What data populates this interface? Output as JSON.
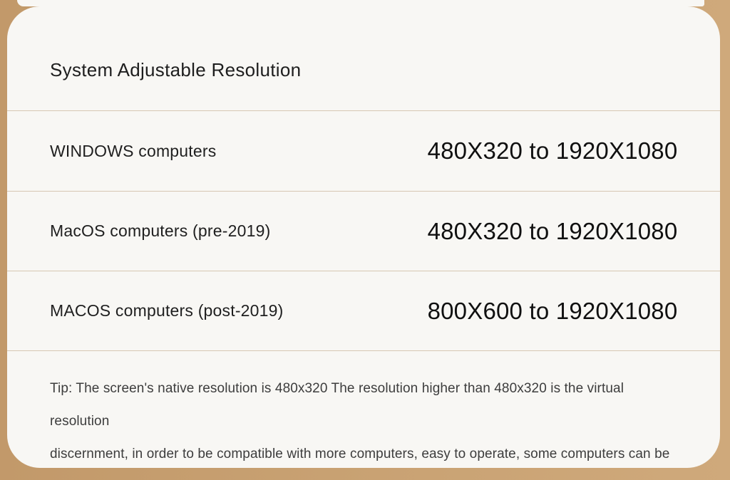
{
  "page": {
    "background_color": "#c8a172",
    "card_color": "#f8f7f4",
    "divider_color": "#d6c7b2"
  },
  "card": {
    "title": "System Adjustable Resolution",
    "rows": [
      {
        "label": "WINDOWS computers",
        "value": "480X320 to 1920X1080"
      },
      {
        "label": "MacOS computers (pre-2019)",
        "value": "480X320 to 1920X1080"
      },
      {
        "label": "MACOS computers (post-2019)",
        "value": "800X600 to 1920X1080"
      }
    ],
    "tip": {
      "line1": "Tip: The screen's native resolution is 480x320 The resolution higher than 480x320 is the virtual resolution",
      "line2": "discernment, in order to be compatible with more computers, easy to operate, some computers can be differences."
    }
  }
}
